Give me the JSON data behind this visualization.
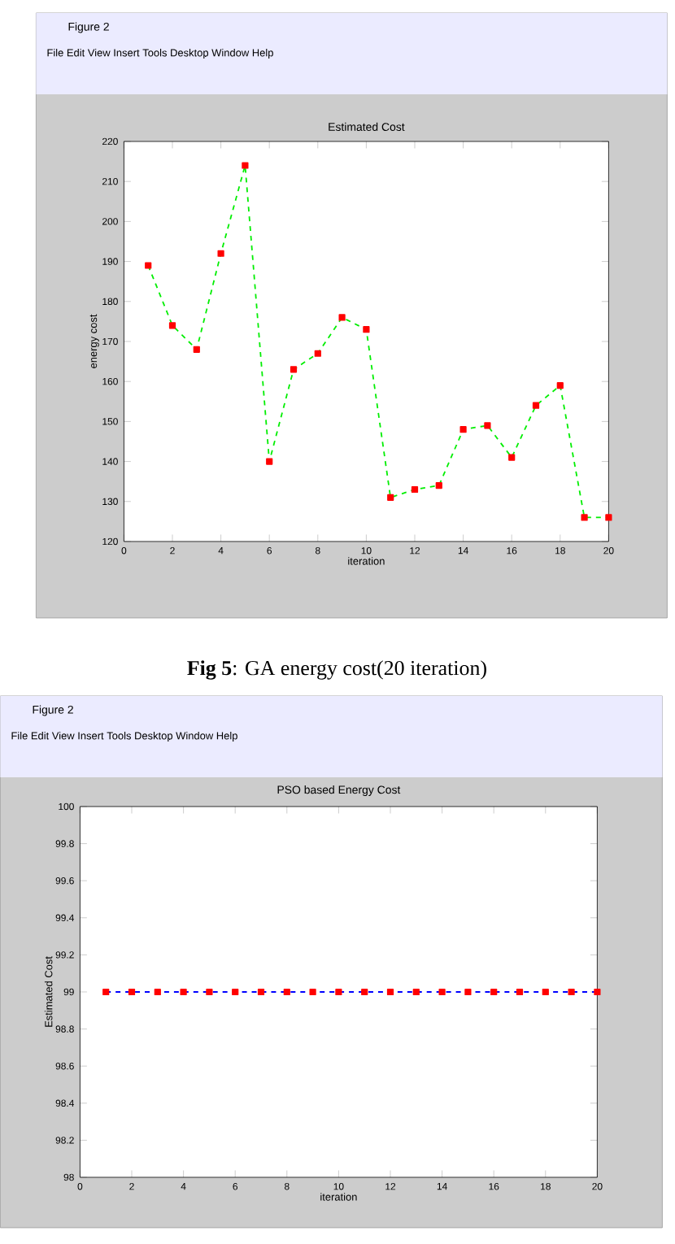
{
  "chart_data": [
    {
      "type": "line",
      "title": "Estimated Cost",
      "xlabel": "iteration",
      "ylabel": "energy cost",
      "marker": "square",
      "line_style": "dashed",
      "x": [
        1,
        2,
        3,
        4,
        5,
        6,
        7,
        8,
        9,
        10,
        11,
        12,
        13,
        14,
        15,
        16,
        17,
        18,
        19,
        20
      ],
      "series": [
        {
          "color": "#00ee00",
          "values": [
            189,
            174,
            168,
            192,
            214,
            140,
            163,
            167,
            176,
            173,
            131,
            133,
            134,
            148,
            149,
            141,
            154,
            159,
            126,
            126
          ]
        }
      ],
      "xlim": [
        0,
        20
      ],
      "ylim": [
        120,
        220
      ],
      "xticks": [
        0,
        2,
        4,
        6,
        8,
        10,
        12,
        14,
        16,
        18,
        20
      ],
      "yticks": [
        120,
        130,
        140,
        150,
        160,
        170,
        180,
        190,
        200,
        210,
        220
      ],
      "annotations": [
        "Figure 2",
        "File Edit View Insert Tools Desktop Window Help",
        "**Fig 5**: GA energy cost(20 iteration)"
      ]
    },
    {
      "type": "line",
      "title": "PSO based Energy Cost",
      "xlabel": "iteration",
      "ylabel": "Estimated Cost",
      "marker": "square",
      "line_style": "dashed",
      "x": [
        1,
        2,
        3,
        4,
        5,
        6,
        7,
        8,
        9,
        10,
        11,
        12,
        13,
        14,
        15,
        16,
        17,
        18,
        19,
        20
      ],
      "series": [
        {
          "color": "#0000ff",
          "values": [
            99,
            99,
            99,
            99,
            99,
            99,
            99,
            99,
            99,
            99,
            99,
            99,
            99,
            99,
            99,
            99,
            99,
            99,
            99,
            99
          ]
        }
      ],
      "xlim": [
        0,
        20
      ],
      "ylim": [
        98,
        100
      ],
      "xticks": [
        0,
        2,
        4,
        6,
        8,
        10,
        12,
        14,
        16,
        18,
        20
      ],
      "yticks": [
        98,
        98.2,
        98.4,
        98.6,
        98.8,
        99,
        99.2,
        99.4,
        99.6,
        99.8,
        100
      ],
      "annotations": [
        "Figure 2",
        "File Edit View Insert Tools Desktop Window Help"
      ]
    }
  ]
}
